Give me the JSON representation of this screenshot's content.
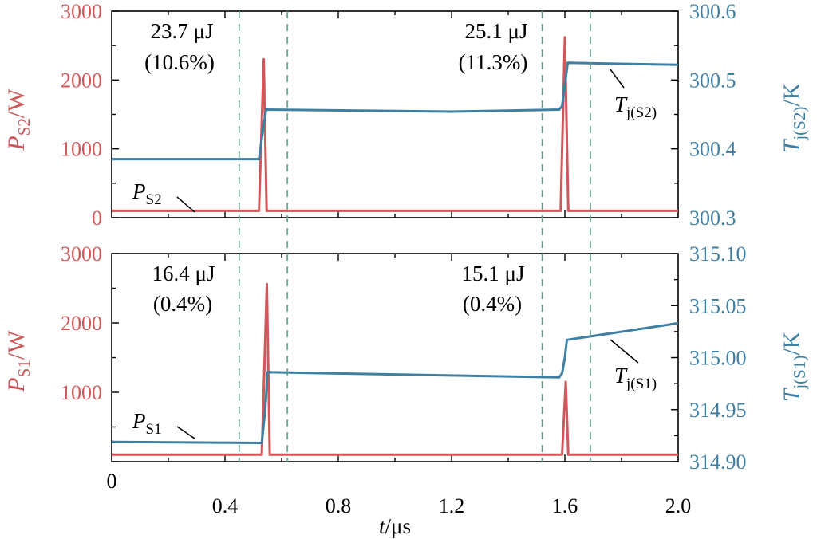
{
  "colors": {
    "power": "#d0575a",
    "temperature": "#3f7fa3",
    "marker": "#5f9a8e",
    "axis": "#000000"
  },
  "xaxis": {
    "label_var": "t",
    "label_unit": "/μs",
    "ticks": [
      "0.4",
      "0.8",
      "1.2",
      "1.6",
      "2.0"
    ],
    "zero_label": "0",
    "lim": [
      0,
      2.0
    ]
  },
  "chart_data": [
    {
      "type": "line",
      "left_axis": {
        "label_main": "P",
        "label_sub": "S2",
        "label_unit": "/W",
        "ticks": [
          "0",
          "1000",
          "2000",
          "3000"
        ],
        "lim": [
          0,
          3000
        ]
      },
      "right_axis": {
        "label_main": "T",
        "label_sub": "j(S2)",
        "label_unit": "/K",
        "ticks": [
          "300.3",
          "300.4",
          "300.5",
          "300.6"
        ],
        "lim": [
          300.3,
          300.6
        ]
      },
      "series": [
        {
          "name": "PS2",
          "axis": "left",
          "x": [
            0,
            0.52,
            0.537,
            0.547,
            0.56,
            2.0,
            1.585,
            1.6,
            1.612,
            1.625
          ],
          "y": [
            100,
            100,
            2300,
            100,
            100,
            100,
            100,
            2620,
            100,
            100
          ],
          "points": [
            [
              0,
              100
            ],
            [
              0.52,
              100
            ],
            [
              0.537,
              2300
            ],
            [
              0.547,
              100
            ],
            [
              0.56,
              100
            ],
            [
              1.585,
              100
            ],
            [
              1.6,
              2620
            ],
            [
              1.612,
              100
            ],
            [
              1.625,
              100
            ],
            [
              2.0,
              100
            ]
          ]
        },
        {
          "name": "Tj(S2)",
          "axis": "right",
          "points": [
            [
              0,
              300.385
            ],
            [
              0.52,
              300.385
            ],
            [
              0.535,
              300.43
            ],
            [
              0.545,
              300.457
            ],
            [
              1.2,
              300.454
            ],
            [
              1.58,
              300.457
            ],
            [
              1.59,
              300.462
            ],
            [
              1.61,
              300.525
            ],
            [
              2.0,
              300.522
            ]
          ]
        }
      ],
      "annotations": [
        {
          "line1": "23.7 μJ",
          "line2": "(10.6%)"
        },
        {
          "line1": "25.1 μJ",
          "line2": "(11.3%)"
        }
      ],
      "series_labels": {
        "power_main": "P",
        "power_sub": "S2",
        "temp_main": "T",
        "temp_sub": "j(S2)"
      }
    },
    {
      "type": "line",
      "left_axis": {
        "label_main": "P",
        "label_sub": "S1",
        "label_unit": "/W",
        "ticks": [
          "1000",
          "2000",
          "3000"
        ],
        "lim": [
          0,
          3000
        ]
      },
      "right_axis": {
        "label_main": "T",
        "label_sub": "j(S1)",
        "label_unit": "/K",
        "ticks": [
          "314.90",
          "314.95",
          "315.00",
          "315.05",
          "315.10"
        ],
        "lim": [
          314.9,
          315.1
        ]
      },
      "series": [
        {
          "name": "PS1",
          "axis": "left",
          "points": [
            [
              0,
              100
            ],
            [
              0.53,
              100
            ],
            [
              0.548,
              2560
            ],
            [
              0.558,
              100
            ],
            [
              0.57,
              100
            ],
            [
              1.59,
              100
            ],
            [
              1.603,
              1150
            ],
            [
              1.612,
              100
            ],
            [
              1.625,
              100
            ],
            [
              2.0,
              100
            ]
          ]
        },
        {
          "name": "Tj(S1)",
          "axis": "right",
          "points": [
            [
              0,
              314.919
            ],
            [
              0.53,
              314.918
            ],
            [
              0.542,
              314.95
            ],
            [
              0.55,
              314.986
            ],
            [
              1.58,
              314.981
            ],
            [
              1.59,
              314.985
            ],
            [
              1.6,
              315.0
            ],
            [
              1.607,
              315.017
            ],
            [
              2.0,
              315.033
            ]
          ]
        }
      ],
      "annotations": [
        {
          "line1": "16.4 μJ",
          "line2": "(0.4%)"
        },
        {
          "line1": "15.1 μJ",
          "line2": "(0.4%)"
        }
      ],
      "series_labels": {
        "power_main": "P",
        "power_sub": "S1",
        "temp_main": "T",
        "temp_sub": "j(S1)"
      }
    }
  ],
  "markers_x": [
    0.45,
    0.62,
    1.52,
    1.69
  ]
}
